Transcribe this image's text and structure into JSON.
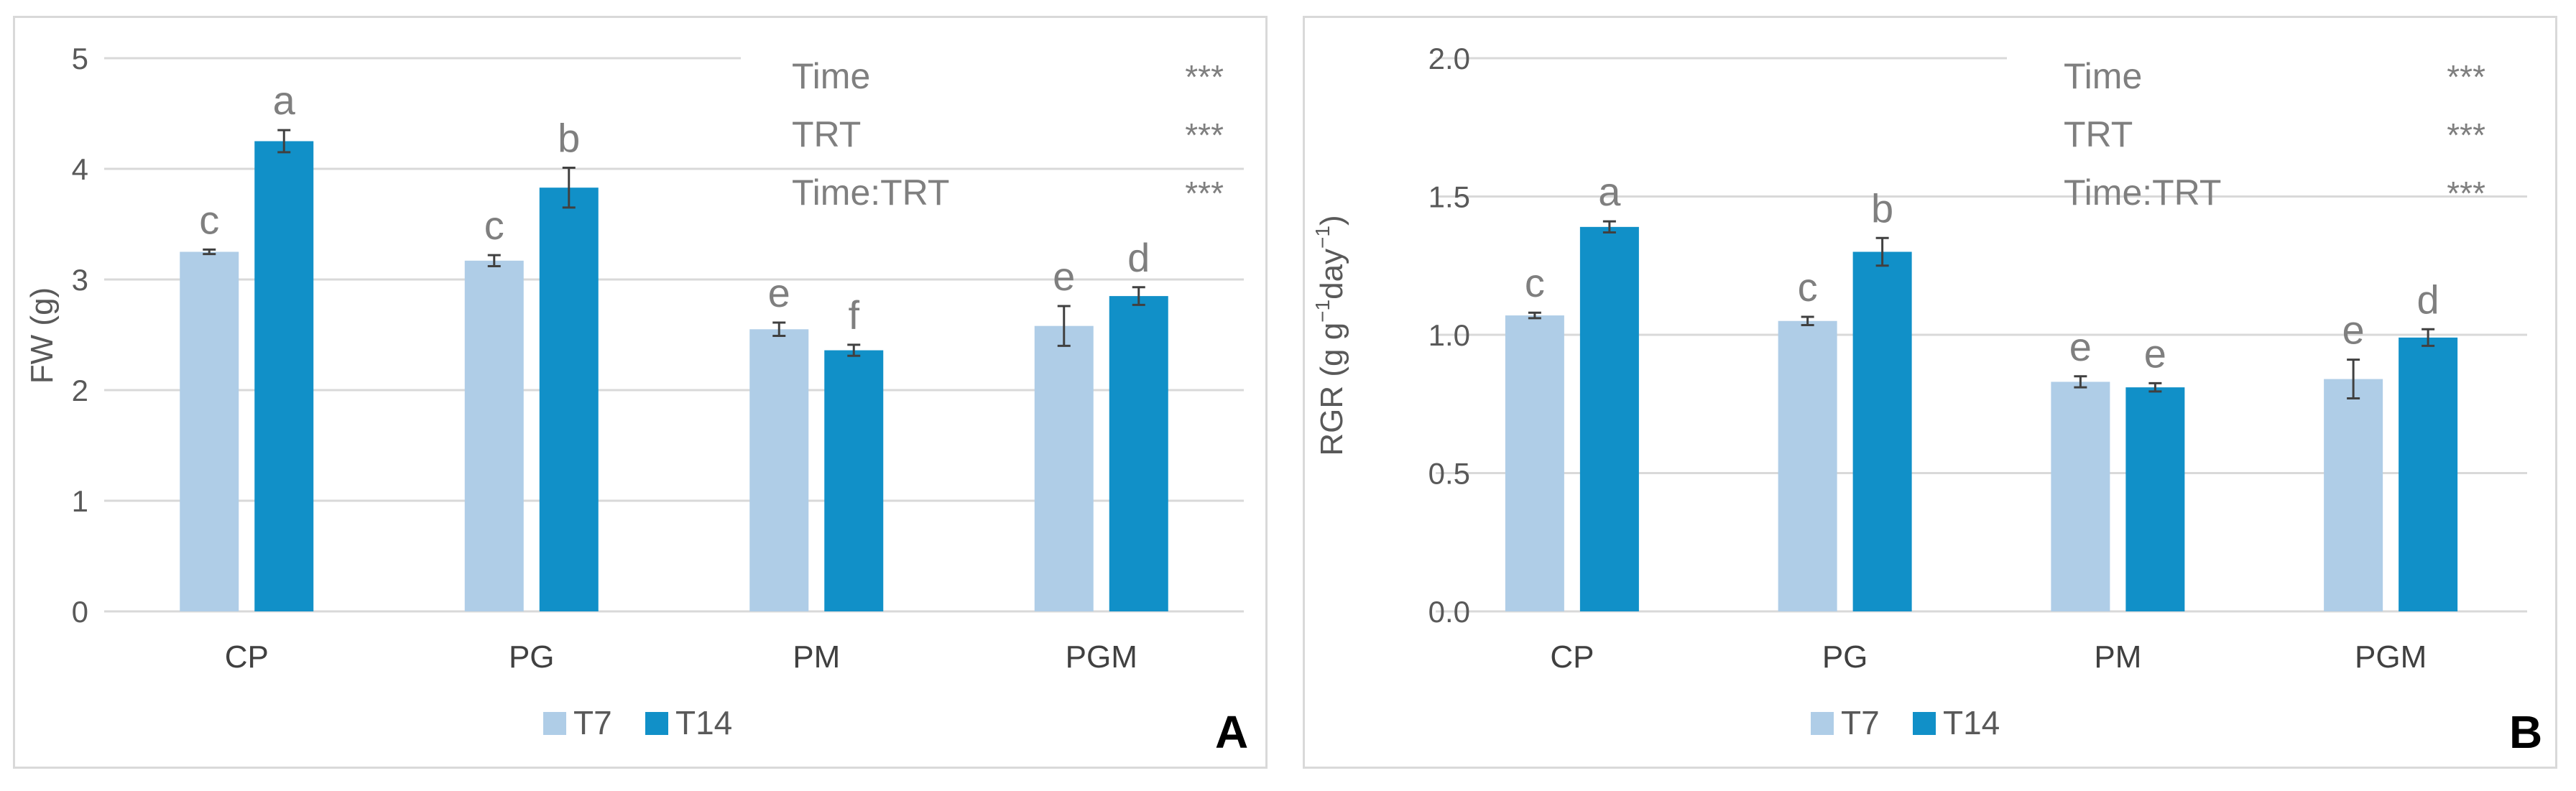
{
  "chart_data": [
    {
      "type": "bar",
      "panel_label": "A",
      "title": "",
      "xlabel": "",
      "ylabel": "FW (g)",
      "ylim": [
        0,
        5
      ],
      "yticks": [
        0,
        1,
        2,
        3,
        4,
        5
      ],
      "ytick_labels": [
        "0",
        "1",
        "2",
        "3",
        "4",
        "5"
      ],
      "categories": [
        "CP",
        "PG",
        "PM",
        "PGM"
      ],
      "series": [
        {
          "name": "T7",
          "color": "#afcde7",
          "values": [
            3.25,
            3.17,
            2.55,
            2.58
          ],
          "errors": [
            0.02,
            0.05,
            0.06,
            0.18
          ],
          "letters": [
            "c",
            "c",
            "e",
            "e"
          ]
        },
        {
          "name": "T14",
          "color": "#1190c8",
          "values": [
            4.25,
            3.83,
            2.36,
            2.85
          ],
          "errors": [
            0.1,
            0.18,
            0.05,
            0.08
          ],
          "letters": [
            "a",
            "b",
            "f",
            "d"
          ]
        }
      ],
      "stats_table": [
        {
          "label": "Time",
          "value": "***"
        },
        {
          "label": "TRT",
          "value": "***"
        },
        {
          "label": "Time:TRT",
          "value": "***"
        }
      ],
      "grid": true,
      "legend_position": "bottom"
    },
    {
      "type": "bar",
      "panel_label": "B",
      "title": "",
      "xlabel": "",
      "ylabel_main": "RGR (g g",
      "ylabel_sup1": "−1",
      "ylabel_mid": "day",
      "ylabel_sup2": "−1",
      "ylabel_end": ")",
      "ylim": [
        0,
        2
      ],
      "yticks": [
        0,
        0.5,
        1,
        1.5,
        2
      ],
      "ytick_labels": [
        "0.0",
        "0.5",
        "1.0",
        "1.5",
        "2.0"
      ],
      "categories": [
        "CP",
        "PG",
        "PM",
        "PGM"
      ],
      "series": [
        {
          "name": "T7",
          "color": "#afcde7",
          "values": [
            1.07,
            1.05,
            0.83,
            0.84
          ],
          "errors": [
            0.01,
            0.015,
            0.02,
            0.07
          ],
          "letters": [
            "c",
            "c",
            "e",
            "e"
          ]
        },
        {
          "name": "T14",
          "color": "#1190c8",
          "values": [
            1.39,
            1.3,
            0.81,
            0.99
          ],
          "errors": [
            0.02,
            0.05,
            0.015,
            0.03
          ],
          "letters": [
            "a",
            "b",
            "e",
            "d"
          ]
        }
      ],
      "stats_table": [
        {
          "label": "Time",
          "value": "***"
        },
        {
          "label": "TRT",
          "value": "***"
        },
        {
          "label": "Time:TRT",
          "value": "***"
        }
      ],
      "grid": true,
      "legend_position": "bottom"
    }
  ]
}
